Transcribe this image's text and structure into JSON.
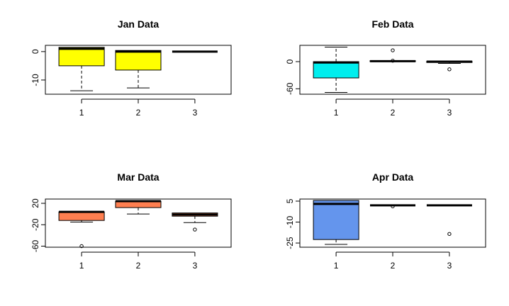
{
  "chart_data": [
    {
      "type": "box",
      "title": "Jan Data",
      "color": "#ffff00",
      "categories": [
        "1",
        "2",
        "3"
      ],
      "ylim": [
        -15,
        2.2
      ],
      "yticks": [
        0,
        -10
      ],
      "ytick_labels": [
        "0",
        "-10"
      ],
      "boxes": [
        {
          "category": "1",
          "whisker_low": -13.8,
          "q1": -5.0,
          "median": 1.0,
          "q3": 1.5,
          "whisker_high": 1.5,
          "outliers": []
        },
        {
          "category": "2",
          "whisker_low": -12.8,
          "q1": -6.5,
          "median": 0.0,
          "q3": 0.4,
          "whisker_high": 0.4,
          "outliers": []
        },
        {
          "category": "3",
          "whisker_low": 0.0,
          "q1": 0.0,
          "median": 0.0,
          "q3": 0.0,
          "whisker_high": 0.0,
          "outliers": []
        }
      ]
    },
    {
      "type": "box",
      "title": "Feb Data",
      "color": "#00eeee",
      "categories": [
        "1",
        "2",
        "3"
      ],
      "ylim": [
        -72,
        36
      ],
      "yticks": [
        0,
        -60
      ],
      "ytick_labels": [
        "0",
        "-60"
      ],
      "boxes": [
        {
          "category": "1",
          "whisker_low": -68,
          "q1": -36,
          "median": -2,
          "q3": 0,
          "whisker_high": 32,
          "outliers": []
        },
        {
          "category": "2",
          "whisker_low": 0,
          "q1": 0,
          "median": 1,
          "q3": 2,
          "whisker_high": 2,
          "outliers": [
            25,
            2
          ]
        },
        {
          "category": "3",
          "whisker_low": -4,
          "q1": -2,
          "median": 0,
          "q3": 1,
          "whisker_high": 1,
          "outliers": [
            -17
          ]
        }
      ]
    },
    {
      "type": "box",
      "title": "Mar Data",
      "color": "#ff7f50",
      "categories": [
        "1",
        "2",
        "3"
      ],
      "ylim": [
        -62,
        28
      ],
      "yticks": [
        20,
        -20,
        -60
      ],
      "ytick_labels": [
        "20",
        "-20",
        "-60"
      ],
      "boxes": [
        {
          "category": "1",
          "whisker_low": -15,
          "q1": -12,
          "median": 4,
          "q3": 4,
          "whisker_high": 4,
          "outliers": [
            -60
          ]
        },
        {
          "category": "2",
          "whisker_low": 0,
          "q1": 12,
          "median": 24,
          "q3": 24,
          "whisker_high": 24,
          "outliers": []
        },
        {
          "category": "3",
          "whisker_low": -16,
          "q1": -4,
          "median": -1,
          "q3": 2,
          "whisker_high": 2,
          "outliers": [
            -29
          ]
        }
      ]
    },
    {
      "type": "box",
      "title": "Apr Data",
      "color": "#6495ed",
      "categories": [
        "1",
        "2",
        "3"
      ],
      "ylim": [
        -28,
        6.5
      ],
      "yticks": [
        5,
        -10,
        -25
      ],
      "ytick_labels": [
        "5",
        "-10",
        "-25"
      ],
      "boxes": [
        {
          "category": "1",
          "whisker_low": -26,
          "q1": -22.5,
          "median": 3,
          "q3": 5.5,
          "whisker_high": 5.5,
          "outliers": []
        },
        {
          "category": "2",
          "whisker_low": 2,
          "q1": 2,
          "median": 2,
          "q3": 2,
          "whisker_high": 2,
          "outliers": [
            1.3
          ]
        },
        {
          "category": "3",
          "whisker_low": 2,
          "q1": 2,
          "median": 2,
          "q3": 2,
          "whisker_high": 2,
          "outliers": [
            -18.5
          ]
        }
      ]
    }
  ]
}
